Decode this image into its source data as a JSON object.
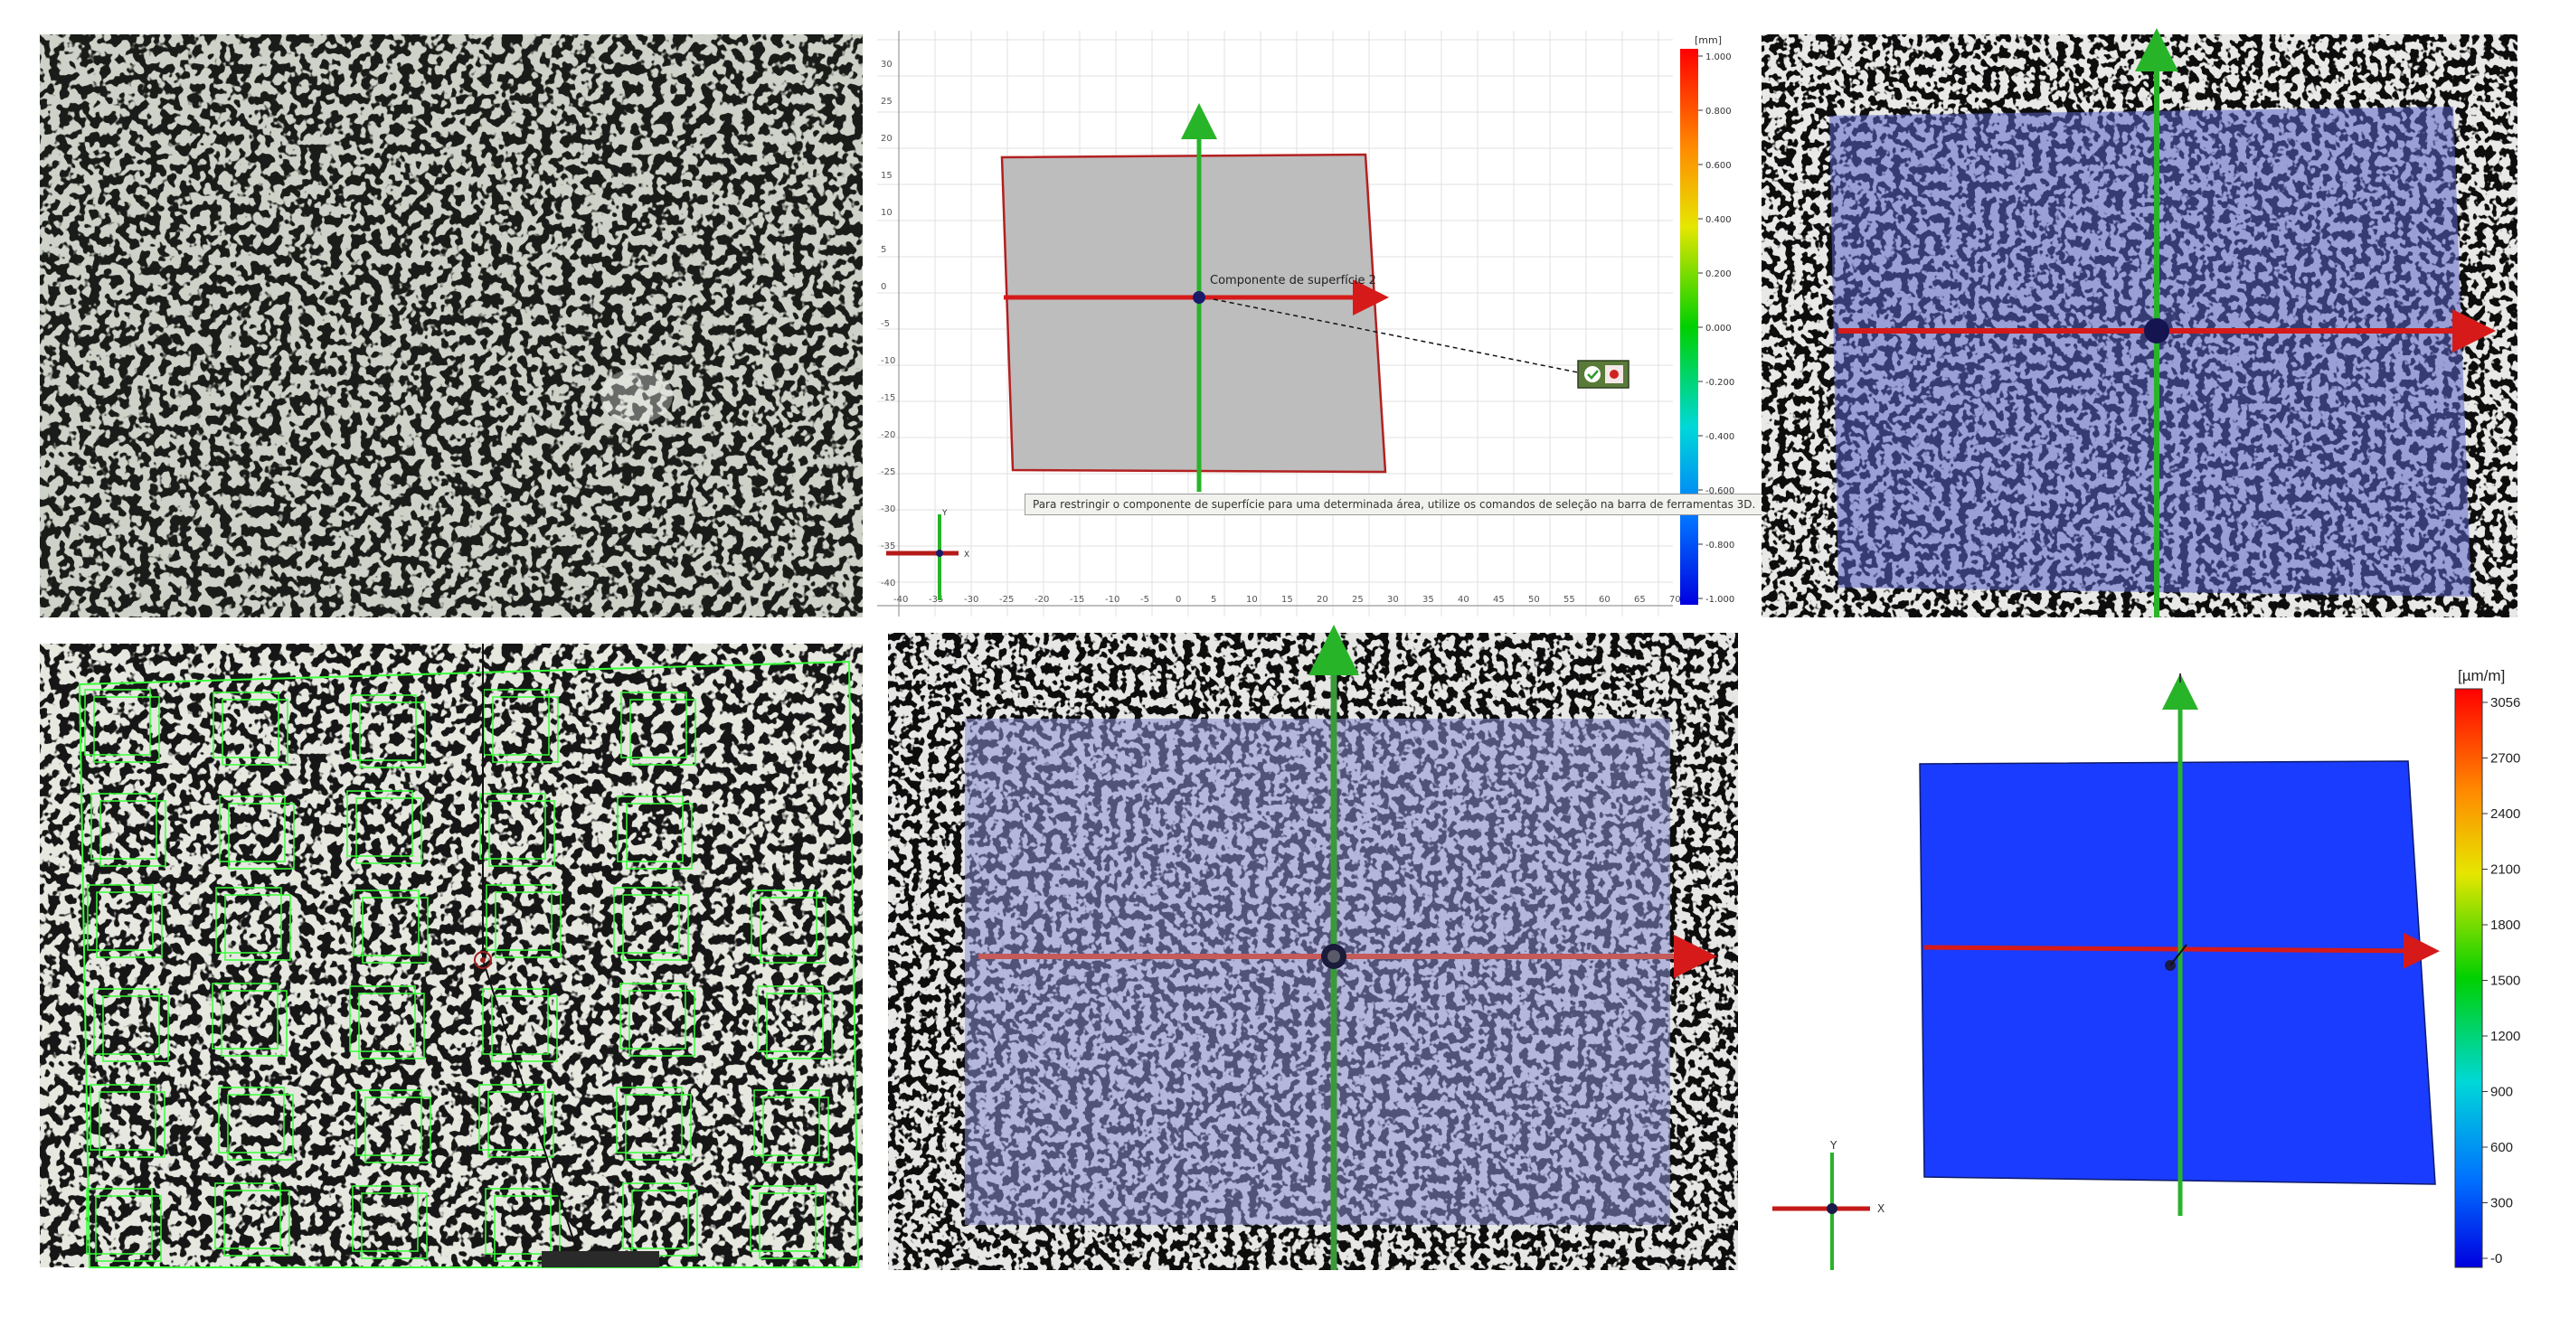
{
  "panel_b": {
    "unit_label": "[mm]",
    "scale_labels": [
      "1.000",
      "0.800",
      "0.600",
      "0.400",
      "0.200",
      "0.000",
      "-0.200",
      "-0.400",
      "-0.600",
      "-0.800",
      "-1.000"
    ],
    "y_tick_labels": [
      "30",
      "25",
      "20",
      "15",
      "10",
      "5",
      "0",
      "-5",
      "-10",
      "-15",
      "-20",
      "-25",
      "-30",
      "-35",
      "-40"
    ],
    "x_tick_labels": [
      "-40",
      "-35",
      "-30",
      "-25",
      "-20",
      "-15",
      "-10",
      "-5",
      "0",
      "5",
      "10",
      "15",
      "20",
      "25",
      "30",
      "35",
      "40",
      "45",
      "50",
      "55",
      "60",
      "65",
      "70"
    ],
    "component_label": "Componente de superfície 2",
    "hint_text": "Para restringir o componente de superfície para uma determinada área, utilize os comandos de seleção na barra de ferramentas 3D.",
    "axis_y": "Y",
    "axis_x": "X"
  },
  "panel_f": {
    "unit_label": "[µm/m]",
    "scale_labels": [
      "3056",
      "2700",
      "2400",
      "2100",
      "1800",
      "1500",
      "1200",
      "900",
      "600",
      "300",
      "-0"
    ],
    "axis_y": "Y",
    "axis_x": "X"
  },
  "colors": {
    "axis_red": "#d61a1a",
    "axis_green": "#28b428",
    "plane_gray": "#bdbdbd",
    "plane_blue": "#1a3cff",
    "overlay_blue": "#5a64c8",
    "grid_green": "#39ff39"
  }
}
